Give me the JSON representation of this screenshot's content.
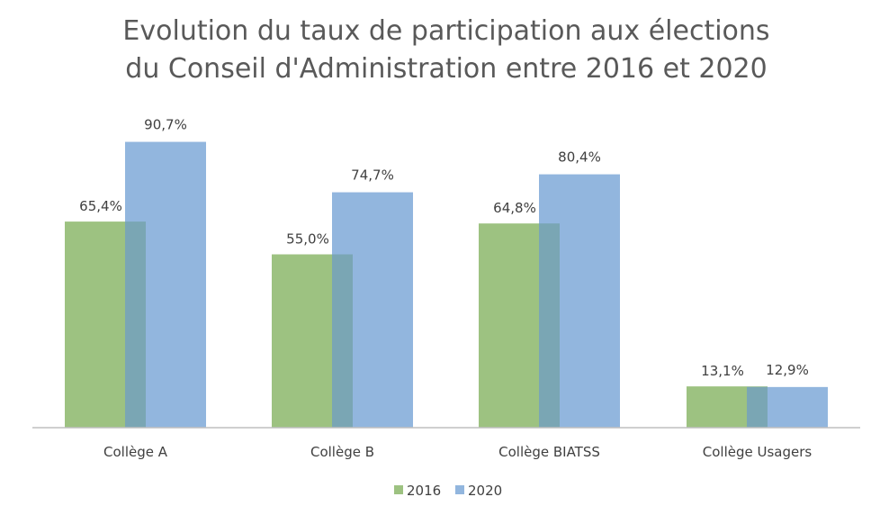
{
  "chart_data": {
    "type": "bar",
    "title": [
      "Evolution du taux de participation aux élections",
      "du Conseil d'Administration entre 2016 et 2020"
    ],
    "categories": [
      "Collège  A",
      "Collège  B",
      "Collège  BIATSS",
      "Collège  Usagers"
    ],
    "series": [
      {
        "name": "2016",
        "color": "#9dc281",
        "values": [
          65.4,
          55.0,
          64.8,
          13.1
        ],
        "labels": [
          "65,4%",
          "55,0%",
          "64,8%",
          "13,1%"
        ]
      },
      {
        "name": "2020",
        "color": "#92b6de",
        "values": [
          90.7,
          74.7,
          80.4,
          12.9
        ],
        "labels": [
          "90,7%",
          "74,7%",
          "80,4%",
          "12,9%"
        ]
      }
    ],
    "ylim": [
      0,
      100
    ],
    "grid": false,
    "legend_position": "bottom",
    "overlap_color": "#7aa6b4",
    "axis_color": "#bfbfbf"
  }
}
